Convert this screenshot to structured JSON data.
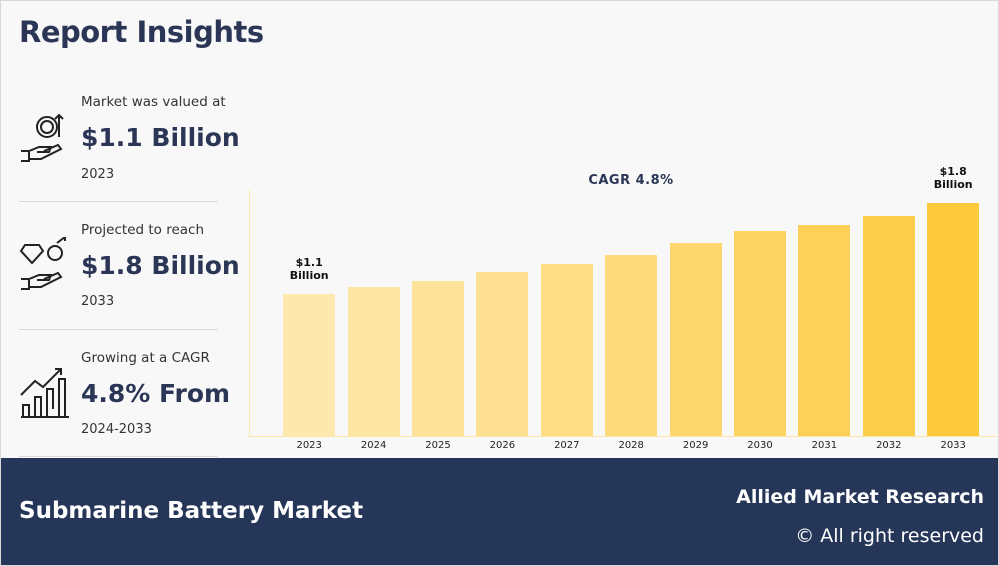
{
  "header": {
    "title": "Report Insights"
  },
  "stats": [
    {
      "caption": "Market was valued at",
      "value": "$1.1 Billion",
      "year": "2023"
    },
    {
      "caption": "Projected to reach",
      "value": "$1.8 Billion",
      "year": "2033"
    },
    {
      "caption": "Growing at a CAGR",
      "value": "4.8% From",
      "year": "2024-2033"
    }
  ],
  "chart_data": {
    "type": "bar",
    "annotation": "CAGR 4.8%",
    "categories": [
      "2023",
      "2024",
      "2025",
      "2026",
      "2027",
      "2028",
      "2029",
      "2030",
      "2031",
      "2032",
      "2033"
    ],
    "values": [
      1.1,
      1.15,
      1.2,
      1.27,
      1.33,
      1.4,
      1.49,
      1.58,
      1.63,
      1.7,
      1.8
    ],
    "value_labels": [
      "$1.1 Billion",
      null,
      null,
      null,
      null,
      null,
      null,
      null,
      null,
      null,
      "$1.8 Billion"
    ],
    "colors": [
      "#fde9ae",
      "#fde6a3",
      "#fde39a",
      "#fde091",
      "#fddd86",
      "#fdda7b",
      "#fdd66e",
      "#fdd363",
      "#fdd058",
      "#fdcd4c",
      "#fdca3e"
    ],
    "ylim": [
      0,
      1.9
    ]
  },
  "footer": {
    "title": "Submarine Battery Market",
    "brand": "Allied Market Research",
    "rights": "© All right reserved"
  }
}
